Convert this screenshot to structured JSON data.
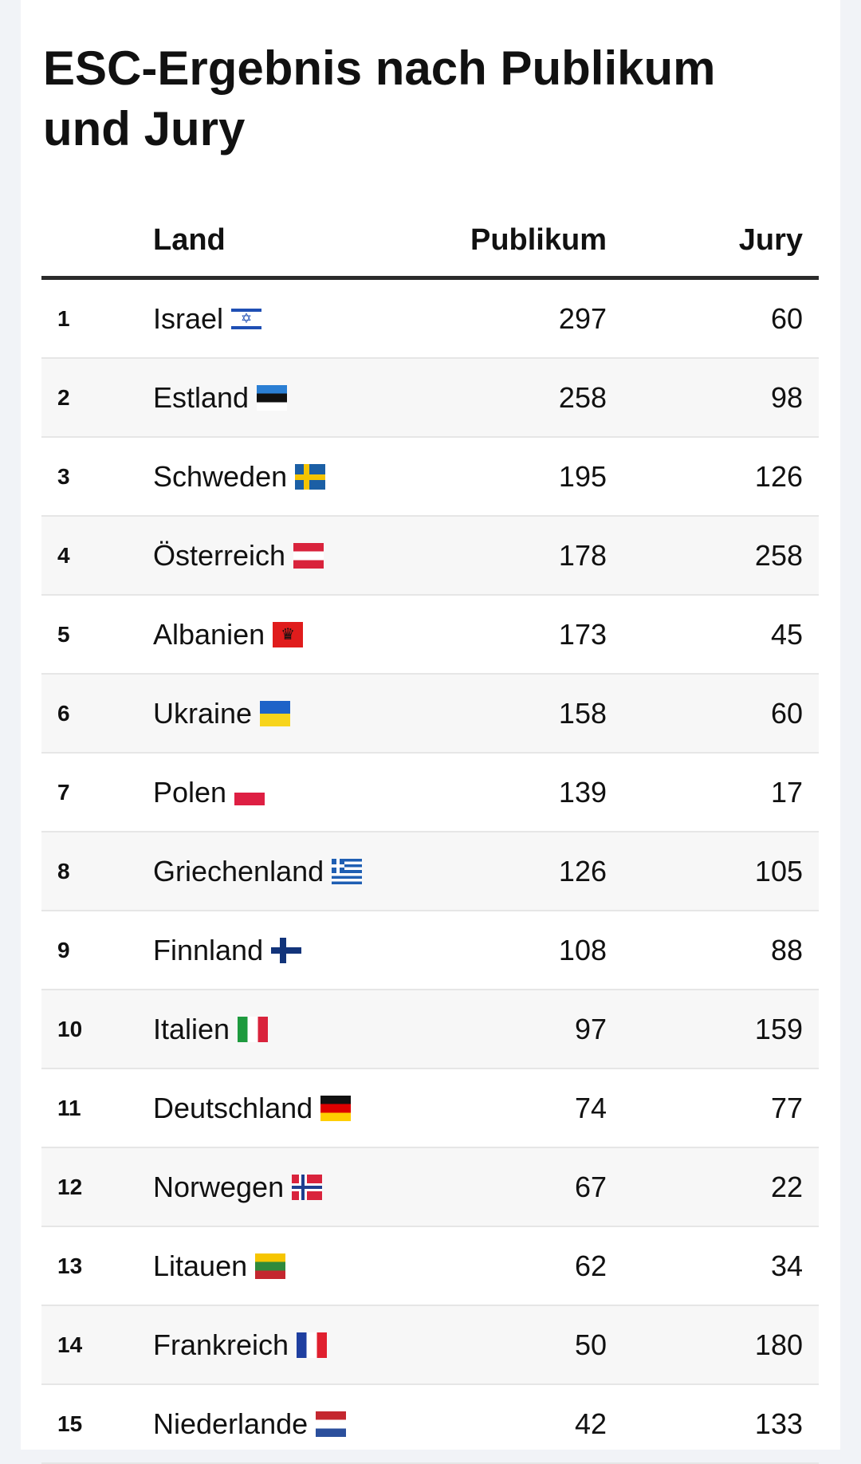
{
  "title": "ESC-Ergebnis nach Publikum und Jury",
  "headers": {
    "rank": "",
    "land": "Land",
    "publikum": "Publikum",
    "jury": "Jury"
  },
  "rows": [
    {
      "rank": "1",
      "land": "Israel",
      "flag": "israel-flag-icon",
      "publikum": "297",
      "jury": "60"
    },
    {
      "rank": "2",
      "land": "Estland",
      "flag": "estonia-flag-icon",
      "publikum": "258",
      "jury": "98"
    },
    {
      "rank": "3",
      "land": "Schweden",
      "flag": "sweden-flag-icon",
      "publikum": "195",
      "jury": "126"
    },
    {
      "rank": "4",
      "land": "Österreich",
      "flag": "austria-flag-icon",
      "publikum": "178",
      "jury": "258"
    },
    {
      "rank": "5",
      "land": "Albanien",
      "flag": "albania-flag-icon",
      "publikum": "173",
      "jury": "45"
    },
    {
      "rank": "6",
      "land": "Ukraine",
      "flag": "ukraine-flag-icon",
      "publikum": "158",
      "jury": "60"
    },
    {
      "rank": "7",
      "land": "Polen",
      "flag": "poland-flag-icon",
      "publikum": "139",
      "jury": "17"
    },
    {
      "rank": "8",
      "land": "Griechenland",
      "flag": "greece-flag-icon",
      "publikum": "126",
      "jury": "105"
    },
    {
      "rank": "9",
      "land": "Finnland",
      "flag": "finland-flag-icon",
      "publikum": "108",
      "jury": "88"
    },
    {
      "rank": "10",
      "land": "Italien",
      "flag": "italy-flag-icon",
      "publikum": "97",
      "jury": "159"
    },
    {
      "rank": "11",
      "land": "Deutschland",
      "flag": "germany-flag-icon",
      "publikum": "74",
      "jury": "77"
    },
    {
      "rank": "12",
      "land": "Norwegen",
      "flag": "norway-flag-icon",
      "publikum": "67",
      "jury": "22"
    },
    {
      "rank": "13",
      "land": "Litauen",
      "flag": "lithuania-flag-icon",
      "publikum": "62",
      "jury": "34"
    },
    {
      "rank": "14",
      "land": "Frankreich",
      "flag": "france-flag-icon",
      "publikum": "50",
      "jury": "180"
    },
    {
      "rank": "15",
      "land": "Niederlande",
      "flag": "netherlands-flag-icon",
      "publikum": "42",
      "jury": "133"
    }
  ]
}
